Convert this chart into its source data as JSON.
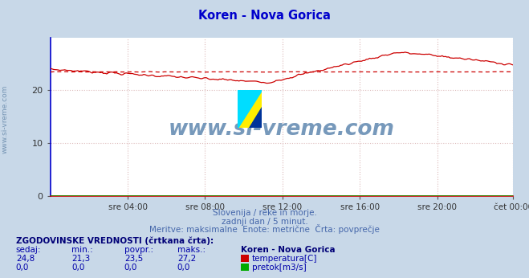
{
  "title": "Koren - Nova Gorica",
  "title_color": "#0000cc",
  "bg_color": "#c8d8e8",
  "plot_bg_color": "#ffffff",
  "xlabel_ticks": [
    "sre 04:00",
    "sre 08:00",
    "sre 12:00",
    "sre 16:00",
    "sre 20:00",
    "čet 00:00"
  ],
  "ylabel_ticks": [
    0,
    10,
    20
  ],
  "ylim": [
    0,
    30
  ],
  "xlim_max": 287,
  "grid_color": "#ddbbbb",
  "grid_style": ":",
  "temp_color": "#cc0000",
  "flow_color": "#00aa00",
  "watermark_text": "www.si-vreme.com",
  "watermark_color": "#7799bb",
  "subtitle1": "Slovenija / reke in morje.",
  "subtitle2": "zadnji dan / 5 minut.",
  "subtitle3": "Meritve: maksimalne  Enote: metrične  Črta: povprečje",
  "subtitle_color": "#4466aa",
  "table_header": "ZGODOVINSKE VREDNOSTI (črtkana črta):",
  "table_col_headers": [
    "sedaj:",
    "min.:",
    "povpr.:",
    "maks.:"
  ],
  "table_temp": [
    "24,8",
    "21,3",
    "23,5",
    "27,2"
  ],
  "table_flow": [
    "0,0",
    "0,0",
    "0,0",
    "0,0"
  ],
  "table_station": "Koren - Nova Gorica",
  "label_temp": "temperatura[C]",
  "label_flow": "pretok[m3/s]",
  "table_color": "#0000aa",
  "side_label": "www.si-vreme.com",
  "n_points": 288,
  "axis_left_color": "#0000cc",
  "axis_bottom_color": "#cc0000"
}
